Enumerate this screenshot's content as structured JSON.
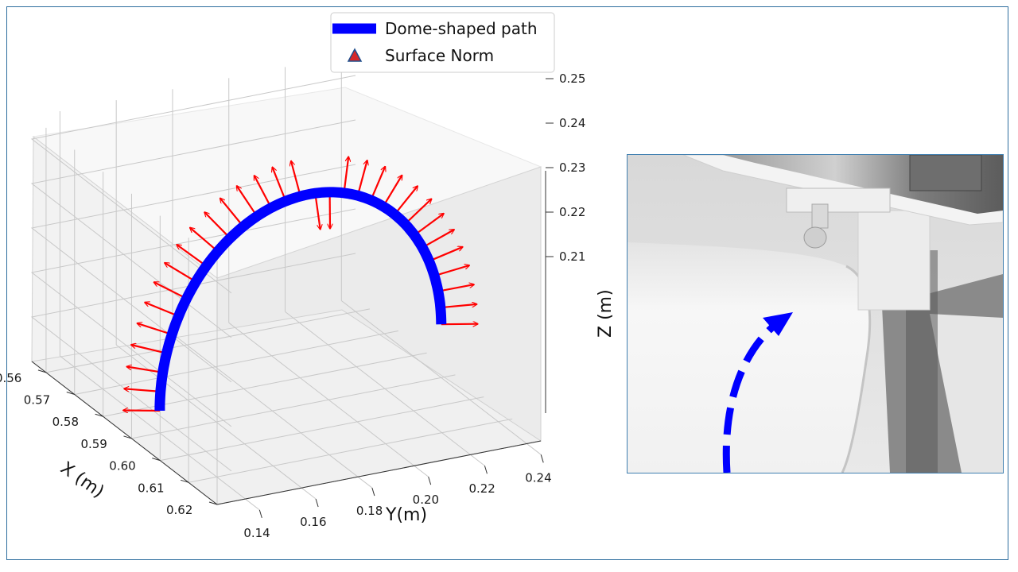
{
  "chart_data": {
    "type": "3d-line-with-vectors",
    "xlabel": "X (m)",
    "ylabel": "Y(m)",
    "zlabel": "Z (m)",
    "x_ticks": [
      "0.56",
      "0.57",
      "0.58",
      "0.59",
      "0.60",
      "0.61",
      "0.62"
    ],
    "y_ticks": [
      "0.14",
      "0.16",
      "0.18",
      "0.20",
      "0.22",
      "0.24"
    ],
    "z_ticks": [
      "0.21",
      "0.22",
      "0.23",
      "0.24",
      "0.25"
    ],
    "xlim": [
      0.555,
      0.625
    ],
    "ylim": [
      0.13,
      0.245
    ],
    "zlim": [
      0.2,
      0.255
    ],
    "legend_position": "top-center",
    "grid": true,
    "series": [
      {
        "name": "Dome-shaped path",
        "kind": "line",
        "color": "#0000ff"
      },
      {
        "name": "Surface Norm",
        "kind": "vectors",
        "color": "#ff0000",
        "marker_color": "#d62728",
        "marker_edge": "#1f4e8c"
      }
    ],
    "path": {
      "x": 0.59,
      "start": [
        0.14,
        0.205
      ],
      "apex": [
        0.19,
        0.247
      ],
      "end": [
        0.24,
        0.212
      ]
    },
    "norm_count": 31
  },
  "photo": {
    "description_icon": "robot-end-effector-on-curved-surface",
    "arrow_color": "#0000ff"
  }
}
